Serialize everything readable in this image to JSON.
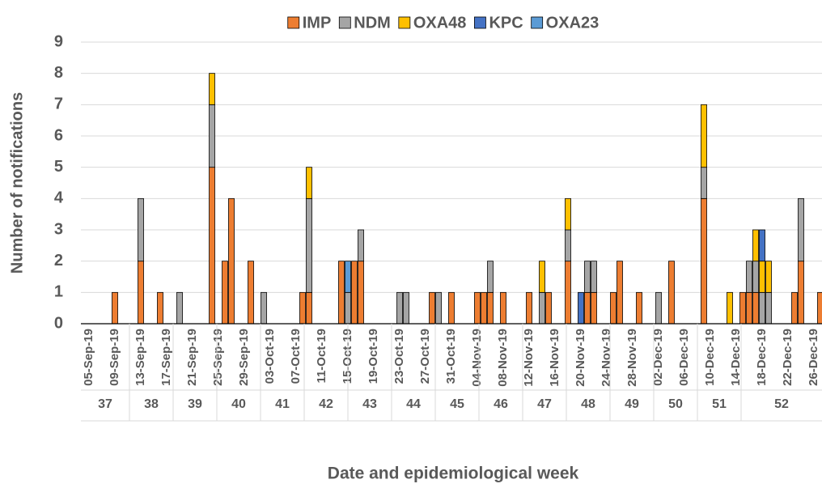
{
  "chart_data": {
    "type": "bar",
    "stacked": true,
    "x_label": "Date and epidemiological week",
    "y_label": "Number of notifications",
    "ylim": [
      0,
      9
    ],
    "yticks": [
      0,
      1,
      2,
      3,
      4,
      5,
      6,
      7,
      8,
      9
    ],
    "grid": true,
    "legend": "top",
    "categories": [
      "05-Sep-19",
      null,
      null,
      null,
      "09-Sep-19",
      null,
      null,
      null,
      "13-Sep-19",
      null,
      null,
      null,
      "17-Sep-19",
      null,
      null,
      null,
      "21-Sep-19",
      null,
      null,
      null,
      "25-Sep-19",
      null,
      null,
      null,
      "29-Sep-19",
      null,
      null,
      null,
      "03-Oct-19",
      null,
      null,
      null,
      "07-Oct-19",
      null,
      null,
      null,
      "11-Oct-19",
      null,
      null,
      null,
      "15-Oct-19",
      null,
      null,
      null,
      "19-Oct-19",
      null,
      null,
      null,
      "23-Oct-19",
      null,
      null,
      null,
      "27-Oct-19",
      null,
      null,
      null,
      "31-Oct-19",
      null,
      null,
      null,
      "04-Nov-19",
      null,
      null,
      null,
      "08-Nov-19",
      null,
      null,
      null,
      "12-Nov-19",
      null,
      null,
      null,
      "16-Nov-19",
      null,
      null,
      null,
      "20-Nov-19",
      null,
      null,
      null,
      "24-Nov-19",
      null,
      null,
      null,
      "28-Nov-19",
      null,
      null,
      null,
      "02-Dec-19",
      null,
      null,
      null,
      "06-Dec-19",
      null,
      null,
      null,
      "10-Dec-19",
      null,
      null,
      null,
      "14-Dec-19",
      null,
      null,
      null,
      "18-Dec-19",
      null,
      null,
      null,
      "22-Dec-19",
      null,
      null,
      null,
      "26-Dec-19",
      null
    ],
    "weeks": [
      37,
      38,
      39,
      40,
      41,
      42,
      43,
      44,
      45,
      46,
      47,
      48,
      49,
      50,
      51,
      52
    ],
    "series": [
      {
        "name": "IMP",
        "color": "#ed7d31",
        "values": [
          0,
          0,
          0,
          0,
          1,
          0,
          0,
          0,
          2,
          0,
          0,
          1,
          0,
          0,
          0,
          0,
          0,
          0,
          0,
          5,
          0,
          2,
          4,
          0,
          0,
          2,
          0,
          0,
          0,
          0,
          0,
          0,
          0,
          1,
          1,
          0,
          0,
          0,
          0,
          2,
          0,
          2,
          2,
          0,
          0,
          0,
          0,
          0,
          0,
          0,
          0,
          0,
          0,
          1,
          0,
          0,
          1,
          0,
          0,
          0,
          1,
          1,
          1,
          0,
          1,
          0,
          0,
          0,
          1,
          0,
          0,
          1,
          0,
          0,
          2,
          0,
          0,
          1,
          1,
          0,
          0,
          1,
          2,
          0,
          0,
          1,
          0,
          0,
          0,
          0,
          2,
          0,
          0,
          0,
          0,
          4,
          0,
          0,
          0,
          0,
          0,
          1,
          1,
          1,
          0,
          0,
          0,
          0,
          0,
          1,
          2,
          0,
          0,
          1
        ]
      },
      {
        "name": "NDM",
        "color": "#a5a5a5",
        "values": [
          0,
          0,
          0,
          0,
          0,
          0,
          0,
          0,
          2,
          0,
          0,
          0,
          0,
          0,
          1,
          0,
          0,
          0,
          0,
          2,
          0,
          0,
          0,
          0,
          0,
          0,
          0,
          1,
          0,
          0,
          0,
          0,
          0,
          0,
          3,
          0,
          0,
          0,
          0,
          0,
          1,
          0,
          1,
          0,
          0,
          0,
          0,
          0,
          1,
          1,
          0,
          0,
          0,
          0,
          1,
          0,
          0,
          0,
          0,
          0,
          0,
          0,
          1,
          0,
          0,
          0,
          0,
          0,
          0,
          0,
          1,
          0,
          0,
          0,
          1,
          0,
          0,
          1,
          1,
          0,
          0,
          0,
          0,
          0,
          0,
          0,
          0,
          0,
          1,
          0,
          0,
          0,
          0,
          0,
          0,
          1,
          0,
          0,
          0,
          0,
          0,
          0,
          1,
          1,
          1,
          1,
          0,
          0,
          0,
          0,
          2,
          0,
          0,
          0
        ]
      },
      {
        "name": "OXA48",
        "color": "#ffc000",
        "values": [
          0,
          0,
          0,
          0,
          0,
          0,
          0,
          0,
          0,
          0,
          0,
          0,
          0,
          0,
          0,
          0,
          0,
          0,
          0,
          1,
          0,
          0,
          0,
          0,
          0,
          0,
          0,
          0,
          0,
          0,
          0,
          0,
          0,
          0,
          1,
          0,
          0,
          0,
          0,
          0,
          0,
          0,
          0,
          0,
          0,
          0,
          0,
          0,
          0,
          0,
          0,
          0,
          0,
          0,
          0,
          0,
          0,
          0,
          0,
          0,
          0,
          0,
          0,
          0,
          0,
          0,
          0,
          0,
          0,
          0,
          1,
          0,
          0,
          0,
          1,
          0,
          0,
          0,
          0,
          0,
          0,
          0,
          0,
          0,
          0,
          0,
          0,
          0,
          0,
          0,
          0,
          0,
          0,
          0,
          0,
          2,
          0,
          0,
          0,
          1,
          0,
          0,
          0,
          1,
          1,
          1,
          0,
          0,
          0,
          0,
          0,
          0,
          0,
          0
        ]
      },
      {
        "name": "KPC",
        "color": "#4472c4",
        "values": [
          0,
          0,
          0,
          0,
          0,
          0,
          0,
          0,
          0,
          0,
          0,
          0,
          0,
          0,
          0,
          0,
          0,
          0,
          0,
          0,
          0,
          0,
          0,
          0,
          0,
          0,
          0,
          0,
          0,
          0,
          0,
          0,
          0,
          0,
          0,
          0,
          0,
          0,
          0,
          0,
          0,
          0,
          0,
          0,
          0,
          0,
          0,
          0,
          0,
          0,
          0,
          0,
          0,
          0,
          0,
          0,
          0,
          0,
          0,
          0,
          0,
          0,
          0,
          0,
          0,
          0,
          0,
          0,
          0,
          0,
          0,
          0,
          0,
          0,
          0,
          0,
          1,
          0,
          0,
          0,
          0,
          0,
          0,
          0,
          0,
          0,
          0,
          0,
          0,
          0,
          0,
          0,
          0,
          0,
          0,
          0,
          0,
          0,
          0,
          0,
          0,
          0,
          0,
          0,
          1,
          0,
          0,
          0,
          0,
          0,
          0,
          0,
          0,
          0
        ]
      },
      {
        "name": "OXA23",
        "color": "#5b9bd5",
        "values": [
          0,
          0,
          0,
          0,
          0,
          0,
          0,
          0,
          0,
          0,
          0,
          0,
          0,
          0,
          0,
          0,
          0,
          0,
          0,
          0,
          0,
          0,
          0,
          0,
          0,
          0,
          0,
          0,
          0,
          0,
          0,
          0,
          0,
          0,
          0,
          0,
          0,
          0,
          0,
          0,
          1,
          0,
          0,
          0,
          0,
          0,
          0,
          0,
          0,
          0,
          0,
          0,
          0,
          0,
          0,
          0,
          0,
          0,
          0,
          0,
          0,
          0,
          0,
          0,
          0,
          0,
          0,
          0,
          0,
          0,
          0,
          0,
          0,
          0,
          0,
          0,
          0,
          0,
          0,
          0,
          0,
          0,
          0,
          0,
          0,
          0,
          0,
          0,
          0,
          0,
          0,
          0,
          0,
          0,
          0,
          0,
          0,
          0,
          0,
          0,
          0,
          0,
          0,
          0,
          0,
          0,
          0,
          0,
          0,
          0,
          0,
          0,
          0,
          0
        ]
      }
    ]
  }
}
